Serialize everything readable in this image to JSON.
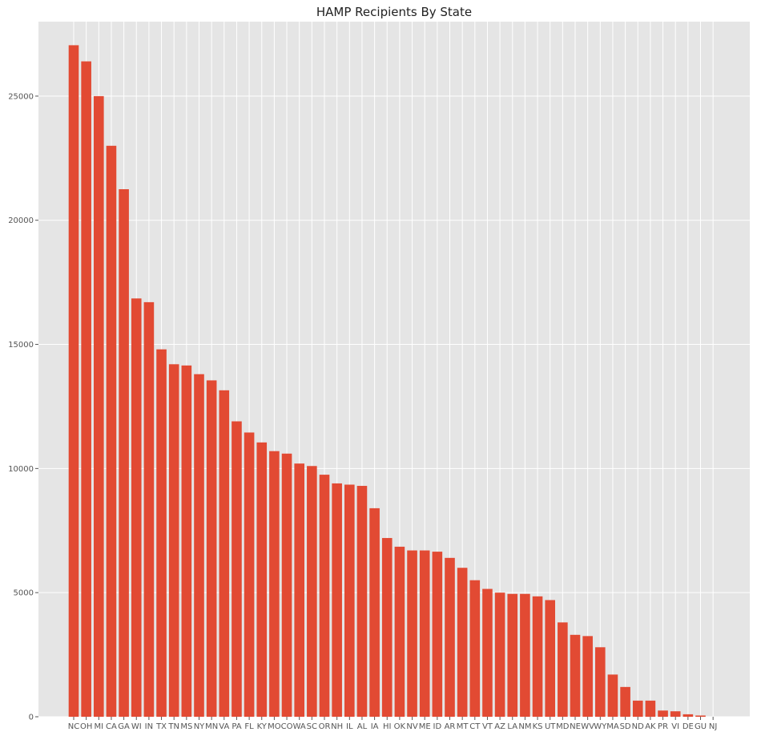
{
  "chart_data": {
    "type": "bar",
    "title": "HAMP Recipients By State",
    "xlabel": "",
    "ylabel": "",
    "ylim": [
      0,
      28000
    ],
    "yticks": [
      0,
      5000,
      10000,
      15000,
      20000,
      25000
    ],
    "grid": true,
    "categories": [
      "NC",
      "OH",
      "MI",
      "CA",
      "GA",
      "WI",
      "IN",
      "TX",
      "TN",
      "MS",
      "NY",
      "MN",
      "VA",
      "PA",
      "FL",
      "KY",
      "MO",
      "CO",
      "WA",
      "SC",
      "OR",
      "NH",
      "IL",
      "AL",
      "IA",
      "HI",
      "OK",
      "NV",
      "ME",
      "ID",
      "AR",
      "MT",
      "CT",
      "VT",
      "AZ",
      "LA",
      "NM",
      "KS",
      "UT",
      "MD",
      "NE",
      "WV",
      "WY",
      "MA",
      "SD",
      "ND",
      "AK",
      "PR",
      "VI",
      "DE",
      "GU",
      "NJ"
    ],
    "values": [
      27050,
      26400,
      25000,
      23000,
      21250,
      16850,
      16700,
      14800,
      14200,
      14150,
      13800,
      13550,
      13150,
      11900,
      11450,
      11050,
      10700,
      10600,
      10200,
      10100,
      9750,
      9400,
      9350,
      9300,
      8400,
      7200,
      6850,
      6700,
      6700,
      6650,
      6400,
      6000,
      5500,
      5150,
      5000,
      4950,
      4950,
      4850,
      4700,
      3800,
      3300,
      3250,
      2800,
      1700,
      1200,
      650,
      650,
      250,
      220,
      100,
      50,
      0
    ],
    "colors": {
      "bar": "#e24a33",
      "plot_bg": "#e5e5e5",
      "grid": "#ffffff"
    }
  }
}
